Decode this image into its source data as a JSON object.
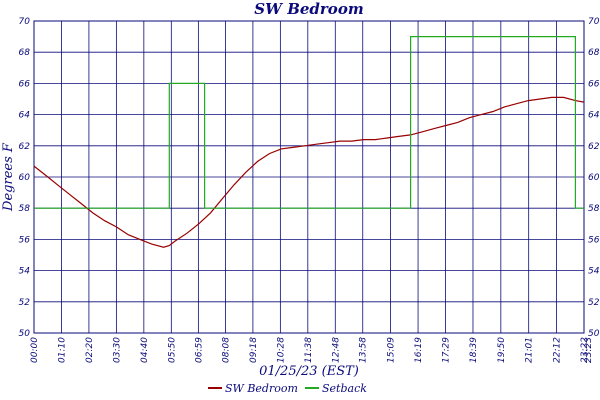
{
  "chart_data": {
    "type": "line",
    "title": "SW Bedroom",
    "xlabel": "01/25/23 (EST)",
    "ylabel": "Degrees F",
    "ylim": [
      50,
      70
    ],
    "yticks": [
      50,
      52,
      54,
      56,
      58,
      60,
      62,
      64,
      66,
      68,
      70
    ],
    "xlim": [
      0,
      1402
    ],
    "xticks": [
      "00:00",
      "01:10",
      "02:20",
      "03:30",
      "04:40",
      "05:50",
      "06:59",
      "08:08",
      "09:18",
      "10:28",
      "11:38",
      "12:48",
      "13:58",
      "15:09",
      "16:19",
      "17:29",
      "18:39",
      "19:50",
      "21:01",
      "22:12",
      "23:22"
    ],
    "xtick_minutes": [
      0,
      70,
      140,
      210,
      280,
      350,
      419,
      488,
      558,
      628,
      698,
      768,
      838,
      909,
      979,
      1049,
      1119,
      1190,
      1261,
      1332,
      1402
    ],
    "extra_tick": "23:23",
    "grid": true,
    "legend_position": "bottom",
    "colors": {
      "SW Bedroom": "#990000",
      "Setback": "#22aa22",
      "grid": "#0a0a7a"
    },
    "series": [
      {
        "name": "SW Bedroom",
        "x": [
          0,
          30,
          60,
          90,
          120,
          150,
          180,
          210,
          240,
          270,
          300,
          330,
          345,
          360,
          390,
          420,
          450,
          480,
          510,
          540,
          570,
          600,
          630,
          660,
          690,
          720,
          750,
          780,
          810,
          840,
          870,
          900,
          930,
          960,
          990,
          1020,
          1050,
          1080,
          1110,
          1140,
          1170,
          1200,
          1230,
          1260,
          1290,
          1320,
          1350,
          1380,
          1402
        ],
        "y": [
          60.7,
          60.1,
          59.5,
          58.9,
          58.3,
          57.7,
          57.2,
          56.8,
          56.3,
          56.0,
          55.7,
          55.5,
          55.6,
          55.9,
          56.4,
          57.0,
          57.7,
          58.6,
          59.5,
          60.3,
          61.0,
          61.5,
          61.8,
          61.9,
          62.0,
          62.1,
          62.2,
          62.3,
          62.3,
          62.4,
          62.4,
          62.5,
          62.6,
          62.7,
          62.9,
          63.1,
          63.3,
          63.5,
          63.8,
          64.0,
          64.2,
          64.5,
          64.7,
          64.9,
          65.0,
          65.1,
          65.1,
          64.9,
          64.8
        ]
      },
      {
        "name": "Setback",
        "step": true,
        "x": [
          0,
          345,
          345,
          435,
          435,
          960,
          960,
          1380,
          1380,
          1402
        ],
        "y": [
          58,
          58,
          66,
          66,
          58,
          58,
          69,
          69,
          58,
          58
        ]
      }
    ]
  }
}
